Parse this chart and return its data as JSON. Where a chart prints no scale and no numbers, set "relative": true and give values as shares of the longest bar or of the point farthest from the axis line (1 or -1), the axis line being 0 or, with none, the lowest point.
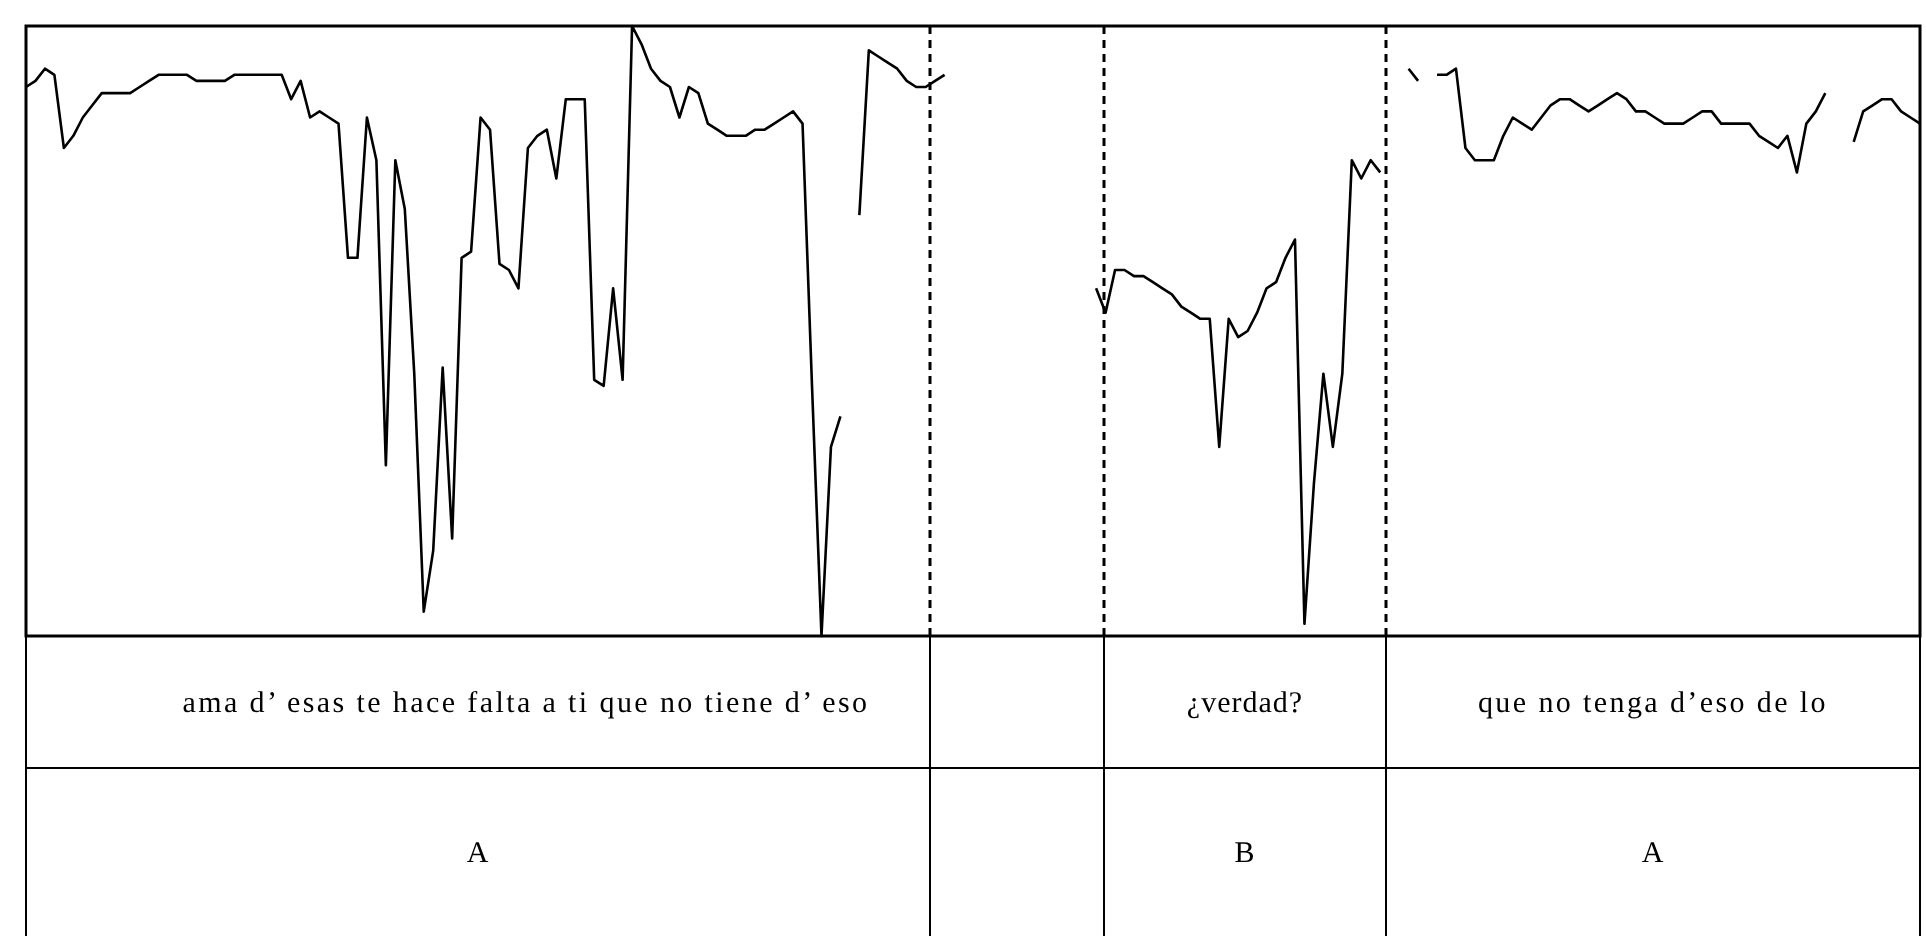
{
  "chart_data": {
    "type": "line",
    "relative": true,
    "line_style": "solid",
    "categories": [
      null,
      null,
      null,
      null,
      null,
      null,
      null,
      null,
      null,
      null,
      null,
      null,
      null,
      null,
      null,
      null,
      null,
      null,
      null,
      null,
      null,
      null,
      null,
      null,
      null,
      null,
      null,
      null,
      null,
      null,
      null,
      null,
      null,
      null,
      null,
      null,
      null,
      null,
      null,
      null,
      null,
      null,
      null,
      null,
      null,
      null,
      null,
      null,
      null,
      null,
      null,
      null,
      null,
      null,
      null,
      null,
      null,
      null,
      null,
      null,
      null,
      null,
      null,
      null,
      null,
      null,
      null,
      null,
      null,
      null,
      null,
      null,
      null,
      null,
      null,
      null,
      null,
      null,
      null,
      null,
      null,
      null,
      null,
      null,
      null,
      null,
      null,
      null,
      null,
      null,
      null,
      null,
      null,
      null,
      null,
      null,
      null,
      null,
      null,
      null,
      null,
      null,
      null,
      null,
      null,
      null,
      null,
      null,
      null,
      null,
      null,
      null,
      null,
      null,
      null,
      null,
      null,
      null,
      null,
      null,
      null,
      null,
      null,
      null,
      null,
      null,
      null,
      null,
      null,
      null,
      null,
      null,
      null,
      null,
      null,
      null,
      null,
      null,
      null,
      null,
      null,
      null,
      null,
      null,
      null,
      null,
      null,
      null,
      null,
      null,
      null,
      null,
      null,
      null,
      null,
      null,
      null,
      null,
      null,
      null,
      null,
      null,
      null,
      null,
      null,
      null,
      null,
      null,
      null,
      null,
      null,
      null,
      null,
      null,
      null,
      null,
      null,
      null,
      null,
      null,
      null,
      null,
      null,
      null,
      null,
      null,
      null,
      null,
      null,
      null,
      null,
      null,
      null,
      null,
      null,
      null,
      null,
      null,
      null,
      null,
      null
    ],
    "series": [
      {
        "color": "#000000",
        "values": [
          0.9,
          0.91,
          0.93,
          0.92,
          0.8,
          0.82,
          0.85,
          0.87,
          0.89,
          0.89,
          0.89,
          0.89,
          0.9,
          0.91,
          0.92,
          0.92,
          0.92,
          0.92,
          0.91,
          0.91,
          0.91,
          0.91,
          0.92,
          0.92,
          0.92,
          0.92,
          0.92,
          0.92,
          0.88,
          0.91,
          0.85,
          0.86,
          0.85,
          0.84,
          0.62,
          0.62,
          0.85,
          0.78,
          0.28,
          0.78,
          0.7,
          0.43,
          0.04,
          0.14,
          0.44,
          0.16,
          0.62,
          0.63,
          0.85,
          0.83,
          0.61,
          0.6,
          0.57,
          0.8,
          0.82,
          0.83,
          0.75,
          0.88,
          0.88,
          0.88,
          0.42,
          0.41,
          0.57,
          0.42,
          1,
          0.97,
          0.93,
          0.91,
          0.9,
          0.85,
          0.9,
          0.89,
          0.84,
          0.83,
          0.82,
          0.82,
          0.82,
          0.83,
          0.83,
          0.84,
          0.85,
          0.86,
          0.84,
          0.41,
          0.0,
          0.31,
          0.36,
          null,
          0.69,
          0.96,
          0.95,
          0.94,
          0.93,
          0.91,
          0.9,
          0.9,
          0.91,
          0.92,
          null,
          null,
          null,
          null,
          null,
          null,
          null,
          null,
          null,
          null,
          null,
          null,
          null,
          null,
          null,
          0.57,
          0.53,
          0.6,
          0.6,
          0.59,
          0.59,
          0.58,
          0.57,
          0.56,
          0.54,
          0.53,
          0.52,
          0.52,
          0.31,
          0.52,
          0.49,
          0.5,
          0.53,
          0.57,
          0.58,
          0.62,
          0.65,
          0.02,
          0.25,
          0.43,
          0.31,
          0.43,
          0.78,
          0.75,
          0.78,
          0.76,
          null,
          null,
          0.93,
          0.91,
          null,
          0.92,
          0.92,
          0.93,
          0.8,
          0.78,
          0.78,
          0.78,
          0.82,
          0.85,
          0.84,
          0.83,
          0.85,
          0.87,
          0.88,
          0.88,
          0.87,
          0.86,
          0.87,
          0.88,
          0.89,
          0.88,
          0.86,
          0.86,
          0.85,
          0.84,
          0.84,
          0.84,
          0.85,
          0.86,
          0.86,
          0.84,
          0.84,
          0.84,
          0.84,
          0.82,
          0.81,
          0.8,
          0.82,
          0.76,
          0.84,
          0.86,
          0.89,
          null,
          null,
          0.81,
          0.86,
          0.87,
          0.88,
          0.88,
          0.86,
          0.85,
          0.84
        ]
      }
    ],
    "annotations": [
      "ama d’ esas te hace falta a ti que no tiene d’ eso",
      "¿verdad?",
      "que no tenga d’eso de lo",
      "A",
      "B",
      "A"
    ]
  }
}
